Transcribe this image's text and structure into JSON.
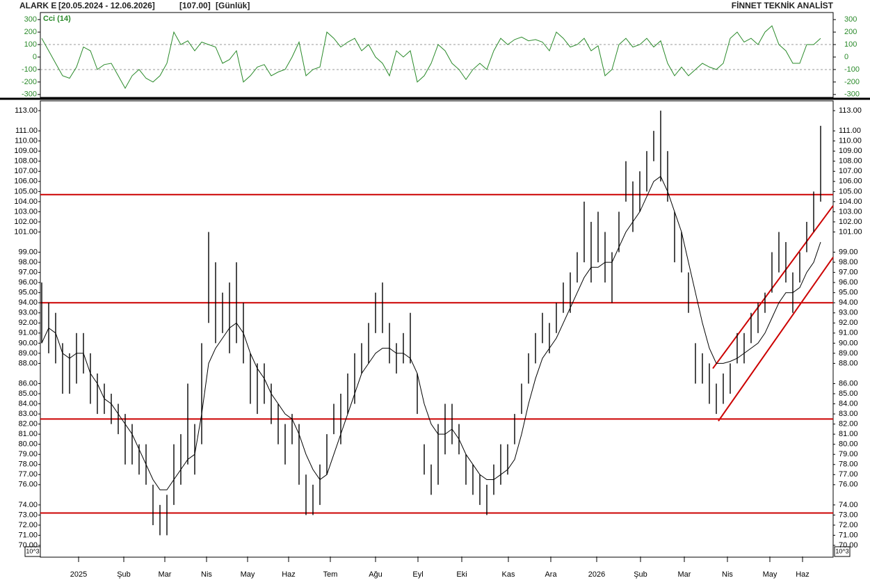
{
  "header": {
    "symbol": "ALARK E",
    "period": "[20.05.2024 - 12.06.2026]",
    "last": "[107.00]",
    "interval": "[Günlük]",
    "brand": "FİNNET TEKNİK ANALİST"
  },
  "chart_data": [
    {
      "type": "line",
      "title": "Cci (14)",
      "color": "#2a8a2a",
      "ylim": [
        -340,
        340
      ],
      "yticks": [
        300,
        200,
        100,
        0,
        -100,
        -200,
        -300
      ],
      "reference_lines": [
        100,
        -100
      ],
      "xlim": [
        -0.2,
        113.8
      ],
      "values": [
        150,
        50,
        -50,
        -150,
        -170,
        -80,
        80,
        50,
        -100,
        -60,
        -50,
        -150,
        -250,
        -150,
        -100,
        -170,
        -200,
        -150,
        -50,
        200,
        100,
        130,
        50,
        120,
        100,
        80,
        -50,
        -20,
        50,
        -200,
        -150,
        -80,
        -60,
        -150,
        -120,
        -100,
        0,
        120,
        -150,
        -100,
        -80,
        200,
        150,
        80,
        120,
        150,
        50,
        100,
        0,
        -50,
        -150,
        50,
        0,
        50,
        -200,
        -150,
        -50,
        100,
        50,
        -50,
        -100,
        -180,
        -100,
        -50,
        -100,
        50,
        150,
        100,
        140,
        160,
        130,
        140,
        120,
        50,
        200,
        150,
        80,
        100,
        150,
        50,
        90,
        -150,
        -100,
        100,
        150,
        80,
        100,
        150,
        80,
        130,
        -50,
        -150,
        -80,
        -150,
        -100,
        -50,
        -80,
        -100,
        -50,
        150,
        200,
        120,
        150,
        100,
        200,
        250,
        100,
        50,
        -50,
        -50,
        100,
        100,
        150
      ]
    },
    {
      "type": "range",
      "bar_color": "#000000",
      "ma_color": "#000000",
      "level_color": "#cc0000",
      "unit_label": "10^3",
      "xlim": [
        -0.2,
        113.8
      ],
      "ylim": [
        68.9,
        113.9
      ],
      "high": [
        96,
        94,
        93,
        90,
        89,
        91,
        91,
        89,
        87,
        86,
        85,
        84,
        83,
        82,
        80,
        80,
        76,
        74,
        75,
        80,
        81,
        86,
        82,
        90,
        101,
        98,
        95,
        96,
        98,
        94,
        89,
        88,
        88,
        86,
        84,
        82,
        83,
        82,
        77,
        76,
        78,
        81,
        84,
        85,
        87,
        89,
        90,
        92,
        95,
        96,
        92,
        90,
        91,
        93,
        87,
        80,
        78,
        82,
        84,
        84,
        82,
        79,
        78,
        77,
        76,
        78,
        80,
        80,
        83,
        86,
        89,
        91,
        93,
        92,
        94,
        96,
        97,
        99,
        104,
        102,
        103,
        101,
        99,
        103,
        108,
        106,
        107,
        109,
        111,
        113,
        109,
        103,
        101,
        97,
        90,
        89,
        88,
        86,
        87,
        88,
        91,
        91,
        93,
        94,
        95,
        99,
        101,
        100,
        97,
        99,
        102,
        105,
        111.5
      ],
      "low": [
        90,
        89,
        88,
        85,
        85,
        86,
        87,
        84,
        83,
        83,
        82,
        81,
        78,
        78,
        77,
        76,
        72,
        71,
        71,
        74,
        76,
        78,
        77,
        80,
        92,
        90,
        91,
        89,
        90,
        88,
        84,
        83,
        84,
        82,
        80,
        78,
        80,
        76,
        73,
        73,
        74,
        77,
        81,
        80,
        83,
        84,
        87,
        88,
        91,
        91,
        88,
        87,
        88,
        88,
        83,
        77,
        75,
        76,
        79,
        80,
        79,
        76,
        75,
        74,
        73,
        75,
        76,
        77,
        80,
        83,
        86,
        88,
        90,
        89,
        91,
        93,
        93,
        96,
        98,
        96,
        98,
        96,
        94,
        99,
        104,
        101,
        103,
        105,
        108,
        106,
        104,
        98,
        97,
        93,
        86,
        86,
        84,
        83,
        84,
        85,
        88,
        88,
        90,
        91,
        93,
        95,
        97,
        96,
        93,
        96,
        99,
        101,
        104
      ],
      "moving_average": [
        90,
        91.5,
        91,
        89,
        88.5,
        89,
        89,
        87,
        86,
        84.5,
        84,
        83,
        82,
        81,
        79.5,
        78,
        76.5,
        75.5,
        75.5,
        76.5,
        77.5,
        78.5,
        79,
        83,
        88,
        89.5,
        90.5,
        91.5,
        92,
        91,
        89,
        87.5,
        86.5,
        85,
        84,
        83,
        82.5,
        81,
        79,
        77.5,
        76.5,
        77,
        79,
        81,
        83,
        85,
        87,
        88,
        89,
        89.5,
        89.5,
        89,
        89,
        88.5,
        87,
        84,
        82,
        81,
        81,
        81.5,
        80.5,
        79,
        78,
        77,
        76.5,
        76.5,
        77,
        77.5,
        78.5,
        81,
        84,
        86.5,
        88.5,
        89.5,
        90.5,
        92,
        93.5,
        95,
        96.5,
        97.5,
        97.5,
        98,
        98,
        99.5,
        101,
        102,
        103,
        104.5,
        106,
        106.5,
        105,
        103,
        101,
        98,
        95,
        92,
        89.5,
        88,
        88,
        88.2,
        88.5,
        89,
        89.5,
        90,
        91,
        92.5,
        94,
        95,
        95,
        95.5,
        97,
        98,
        100
      ],
      "levels": [
        104.7,
        94.0,
        82.5,
        73.2
      ],
      "channel": [
        {
          "x": [
            96.5,
            113.8
          ],
          "y": [
            87.5,
            103.6
          ]
        },
        {
          "x": [
            97.3,
            113.8
          ],
          "y": [
            82.3,
            98.5
          ]
        }
      ],
      "yticks": [
        {
          "value": 113,
          "label": "113.00"
        },
        {
          "value": 111,
          "label": "111.00"
        },
        {
          "value": 110,
          "label": "110.00"
        },
        {
          "value": 109,
          "label": "109.00"
        },
        {
          "value": 108,
          "label": "108.00"
        },
        {
          "value": 107,
          "label": "107.00"
        },
        {
          "value": 106,
          "label": "106.00"
        },
        {
          "value": 105,
          "label": "105.00"
        },
        {
          "value": 104,
          "label": "104.00"
        },
        {
          "value": 103,
          "label": "103.00"
        },
        {
          "value": 102,
          "label": "102.00"
        },
        {
          "value": 101,
          "label": "101.00"
        },
        {
          "value": 99,
          "label": "99.00"
        },
        {
          "value": 98,
          "label": "98.00"
        },
        {
          "value": 97,
          "label": "97.00"
        },
        {
          "value": 96,
          "label": "96.00"
        },
        {
          "value": 95,
          "label": "95.00"
        },
        {
          "value": 94,
          "label": "94.00"
        },
        {
          "value": 93,
          "label": "93.00"
        },
        {
          "value": 92,
          "label": "92.00"
        },
        {
          "value": 91,
          "label": "91.00"
        },
        {
          "value": 90,
          "label": "90.00"
        },
        {
          "value": 89,
          "label": "89.00"
        },
        {
          "value": 88,
          "label": "88.00"
        },
        {
          "value": 86,
          "label": "86.00"
        },
        {
          "value": 85,
          "label": "85.00"
        },
        {
          "value": 84,
          "label": "84.00"
        },
        {
          "value": 83,
          "label": "83.00"
        },
        {
          "value": 82,
          "label": "82.00"
        },
        {
          "value": 81,
          "label": "81.00"
        },
        {
          "value": 80,
          "label": "80.00"
        },
        {
          "value": 79,
          "label": "79.00"
        },
        {
          "value": 78,
          "label": "78.00"
        },
        {
          "value": 77,
          "label": "77.00"
        },
        {
          "value": 76,
          "label": "76.00"
        },
        {
          "value": 74,
          "label": "74.00"
        },
        {
          "value": 73,
          "label": "73.00"
        },
        {
          "value": 72,
          "label": "72.00"
        },
        {
          "value": 71,
          "label": "71.00"
        },
        {
          "value": 70,
          "label": "70.00"
        }
      ],
      "xticks": [
        {
          "value": 5.3,
          "label": "2025"
        },
        {
          "value": 11.8,
          "label": "Şub"
        },
        {
          "value": 17.7,
          "label": "Mar"
        },
        {
          "value": 23.7,
          "label": "Nis"
        },
        {
          "value": 29.6,
          "label": "May"
        },
        {
          "value": 35.5,
          "label": "Haz"
        },
        {
          "value": 41.5,
          "label": "Tem"
        },
        {
          "value": 48,
          "label": "Ağu"
        },
        {
          "value": 54.1,
          "label": "Eyl"
        },
        {
          "value": 60.4,
          "label": "Eki"
        },
        {
          "value": 67.1,
          "label": "Kas"
        },
        {
          "value": 73.2,
          "label": "Ara"
        },
        {
          "value": 79.8,
          "label": "2026"
        },
        {
          "value": 86.1,
          "label": "Şub"
        },
        {
          "value": 92.4,
          "label": "Mar"
        },
        {
          "value": 98.6,
          "label": "Nis"
        },
        {
          "value": 104.7,
          "label": "May"
        },
        {
          "value": 109.4,
          "label": "Haz"
        }
      ]
    }
  ]
}
